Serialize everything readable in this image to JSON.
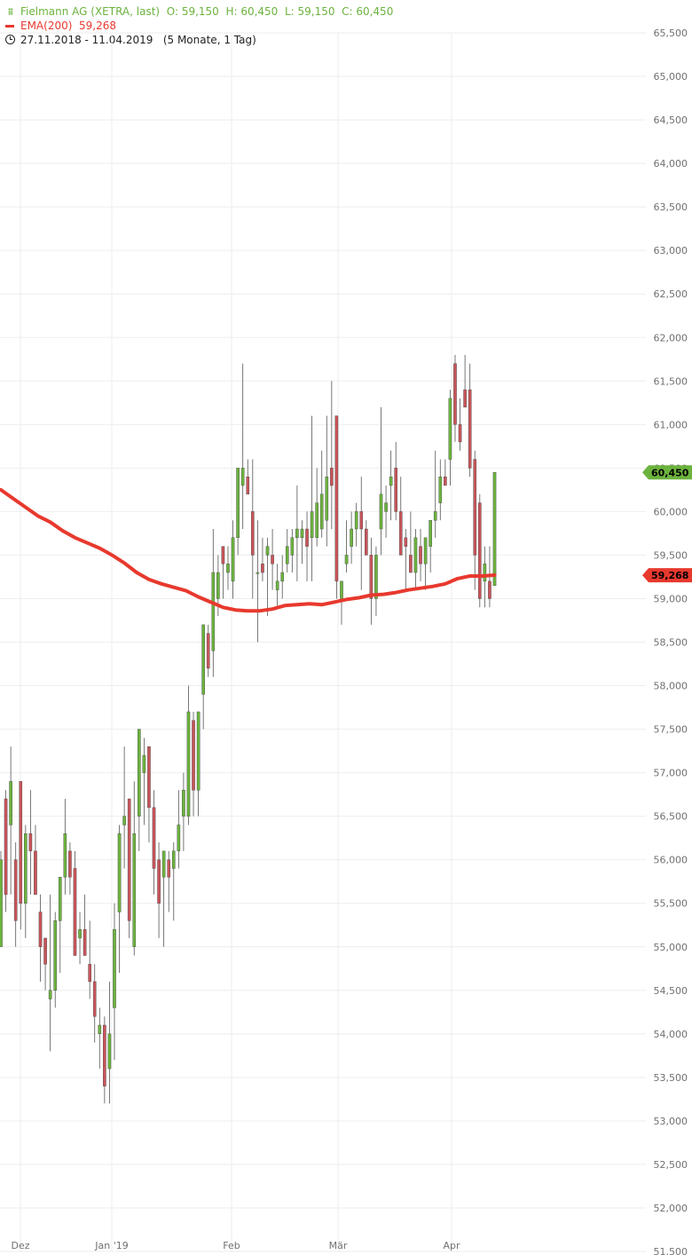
{
  "legend": {
    "stock_icon": "chart-bars-icon",
    "stock": "Fielmann AG (XETRA, last)",
    "ohlc": "O: 59,150  H: 60,450  L: 59,150  C: 60,450",
    "ema": "EMA(200)  59,268",
    "range": "27.11.2018 - 11.04.2019   (5 Monate, 1 Tag)"
  },
  "colors": {
    "up": "#6cb33e",
    "down": "#c8555a",
    "ema": "#e8392e",
    "grid": "#eeeeee",
    "axis_text": "#707070"
  },
  "chart_data": {
    "type": "candlestick",
    "ylim": [
      51500,
      65500
    ],
    "y_ticks": [
      "65,500",
      "65,000",
      "64,500",
      "64,000",
      "63,500",
      "63,000",
      "62,500",
      "62,000",
      "61,500",
      "61,000",
      "60,500",
      "60,000",
      "59,500",
      "59,000",
      "58,500",
      "58,000",
      "57,500",
      "57,000",
      "56,500",
      "56,000",
      "55,500",
      "55,000",
      "54,500",
      "54,000",
      "53,500",
      "53,000",
      "52,500",
      "52,000",
      "51,500"
    ],
    "x_labels": [
      "Dez",
      "Jan '19",
      "Feb",
      "Mär",
      "Apr"
    ],
    "price_tag": {
      "label": "60,450",
      "value": 60.45
    },
    "ema_tag": {
      "label": "59,268",
      "value": 59.268
    },
    "series_ohlc": [
      [
        55.0,
        56.1,
        55.1,
        56.0
      ],
      [
        56.7,
        56.8,
        55.4,
        55.6
      ],
      [
        56.4,
        57.3,
        55.6,
        56.9
      ],
      [
        56.0,
        56.2,
        55.0,
        55.3
      ],
      [
        56.9,
        56.9,
        55.2,
        55.5
      ],
      [
        55.5,
        56.4,
        55.1,
        56.3
      ],
      [
        56.3,
        56.8,
        55.6,
        56.1
      ],
      [
        56.1,
        56.4,
        55.6,
        55.6
      ],
      [
        55.4,
        55.6,
        54.6,
        55.0
      ],
      [
        55.1,
        55.1,
        54.5,
        54.8
      ],
      [
        54.4,
        55.6,
        53.8,
        54.5
      ],
      [
        54.5,
        55.4,
        54.3,
        55.3
      ],
      [
        55.3,
        55.8,
        54.7,
        55.8
      ],
      [
        55.8,
        56.7,
        55.6,
        56.3
      ],
      [
        56.1,
        56.2,
        55.6,
        55.8
      ],
      [
        55.9,
        56.1,
        55.3,
        54.9
      ],
      [
        55.1,
        55.4,
        54.8,
        55.2
      ],
      [
        55.2,
        55.6,
        54.9,
        54.9
      ],
      [
        54.8,
        55.3,
        54.4,
        54.6
      ],
      [
        54.6,
        54.8,
        53.9,
        54.2
      ],
      [
        54.0,
        54.3,
        53.6,
        54.1
      ],
      [
        54.1,
        54.2,
        53.2,
        53.4
      ],
      [
        53.6,
        54.6,
        53.2,
        54.0
      ],
      [
        54.3,
        55.5,
        53.7,
        55.2
      ],
      [
        55.4,
        56.4,
        54.7,
        56.3
      ],
      [
        56.4,
        57.3,
        55.9,
        56.5
      ],
      [
        56.7,
        56.7,
        55.1,
        55.3
      ],
      [
        55.0,
        56.9,
        54.9,
        56.3
      ],
      [
        56.5,
        57.5,
        56.1,
        57.5
      ],
      [
        57.0,
        57.4,
        56.4,
        57.2
      ],
      [
        57.3,
        57.3,
        56.2,
        56.6
      ],
      [
        56.6,
        56.8,
        55.6,
        55.9
      ],
      [
        56.0,
        56.2,
        55.1,
        55.5
      ],
      [
        55.8,
        56.0,
        55.0,
        56.1
      ],
      [
        56.0,
        56.1,
        55.4,
        55.8
      ],
      [
        55.9,
        56.2,
        55.3,
        56.1
      ],
      [
        56.1,
        56.8,
        55.9,
        56.4
      ],
      [
        56.5,
        57.0,
        56.1,
        56.8
      ],
      [
        56.5,
        58.0,
        56.4,
        57.7
      ],
      [
        57.6,
        57.7,
        56.5,
        56.8
      ],
      [
        56.8,
        57.7,
        56.5,
        57.7
      ],
      [
        57.9,
        58.7,
        57.5,
        58.7
      ],
      [
        58.6,
        58.7,
        58.1,
        58.2
      ],
      [
        58.4,
        59.8,
        58.1,
        59.3
      ],
      [
        59.0,
        59.5,
        58.8,
        59.3
      ],
      [
        59.6,
        59.6,
        59.0,
        59.4
      ],
      [
        59.3,
        59.6,
        59.1,
        59.4
      ],
      [
        59.2,
        59.9,
        59.0,
        59.7
      ],
      [
        59.7,
        60.5,
        59.5,
        60.5
      ],
      [
        60.3,
        61.7,
        59.8,
        60.5
      ],
      [
        60.4,
        60.6,
        60.2,
        60.2
      ],
      [
        60.0,
        60.6,
        59.0,
        59.5
      ],
      [
        59.3,
        59.9,
        58.5,
        59.3
      ],
      [
        59.4,
        59.7,
        59.2,
        59.3
      ],
      [
        59.5,
        59.7,
        58.8,
        59.6
      ],
      [
        59.5,
        59.8,
        59.1,
        59.4
      ],
      [
        59.1,
        59.4,
        58.9,
        59.2
      ],
      [
        59.2,
        59.5,
        59.0,
        59.3
      ],
      [
        59.4,
        59.8,
        59.3,
        59.6
      ],
      [
        59.5,
        59.8,
        59.3,
        59.7
      ],
      [
        59.7,
        60.3,
        59.2,
        59.8
      ],
      [
        59.7,
        59.9,
        59.4,
        59.8
      ],
      [
        59.8,
        60.0,
        59.2,
        59.6
      ],
      [
        59.7,
        61.1,
        59.2,
        60.0
      ],
      [
        59.7,
        60.5,
        59.6,
        60.1
      ],
      [
        59.8,
        60.7,
        59.7,
        60.2
      ],
      [
        59.9,
        61.1,
        59.6,
        60.4
      ],
      [
        60.5,
        61.5,
        59.8,
        60.3
      ],
      [
        61.1,
        61.1,
        59.0,
        59.2
      ],
      [
        59.0,
        59.2,
        58.7,
        59.2
      ],
      [
        59.4,
        59.9,
        59.3,
        59.5
      ],
      [
        59.6,
        60.0,
        59.4,
        59.8
      ],
      [
        59.8,
        60.1,
        59.6,
        60.0
      ],
      [
        60.0,
        60.4,
        59.1,
        59.8
      ],
      [
        59.8,
        59.9,
        59.6,
        59.5
      ],
      [
        59.5,
        59.7,
        58.7,
        59.0
      ],
      [
        59.0,
        59.6,
        58.8,
        59.5
      ],
      [
        59.8,
        61.2,
        59.5,
        60.2
      ],
      [
        60.0,
        60.3,
        59.7,
        60.1
      ],
      [
        60.3,
        60.7,
        59.9,
        60.4
      ],
      [
        60.5,
        60.8,
        59.9,
        60.0
      ],
      [
        60.0,
        60.4,
        59.5,
        59.5
      ],
      [
        59.7,
        59.8,
        59.1,
        59.6
      ],
      [
        59.5,
        60.0,
        59.4,
        59.3
      ],
      [
        59.3,
        59.8,
        59.1,
        59.7
      ],
      [
        59.6,
        59.8,
        59.2,
        59.4
      ],
      [
        59.4,
        59.6,
        59.1,
        59.7
      ],
      [
        59.6,
        59.8,
        59.3,
        59.9
      ],
      [
        59.9,
        60.7,
        59.7,
        60.0
      ],
      [
        60.1,
        60.6,
        59.9,
        60.4
      ],
      [
        60.4,
        60.6,
        60.3,
        60.3
      ],
      [
        60.6,
        61.4,
        60.3,
        61.3
      ],
      [
        61.7,
        61.8,
        60.8,
        61.0
      ],
      [
        61.0,
        61.3,
        60.7,
        60.8
      ],
      [
        61.4,
        61.8,
        61.2,
        61.2
      ],
      [
        61.4,
        61.7,
        60.4,
        60.5
      ],
      [
        60.6,
        60.7,
        59.1,
        59.5
      ],
      [
        60.1,
        60.2,
        58.9,
        59.0
      ],
      [
        59.2,
        59.6,
        58.9,
        59.4
      ],
      [
        59.2,
        59.6,
        58.9,
        59.0
      ],
      [
        59.15,
        60.45,
        59.15,
        60.45
      ]
    ],
    "ema_series": [
      60.25,
      60.15,
      60.05,
      59.95,
      59.88,
      59.78,
      59.7,
      59.64,
      59.58,
      59.5,
      59.41,
      59.3,
      59.22,
      59.17,
      59.13,
      59.09,
      59.02,
      58.96,
      58.9,
      58.87,
      58.86,
      58.86,
      58.88,
      58.92,
      58.93,
      58.94,
      58.93,
      58.96,
      58.99,
      59.01,
      59.04,
      59.05,
      59.07,
      59.1,
      59.12,
      59.14,
      59.17,
      59.23,
      59.26,
      59.26,
      59.27
    ]
  }
}
